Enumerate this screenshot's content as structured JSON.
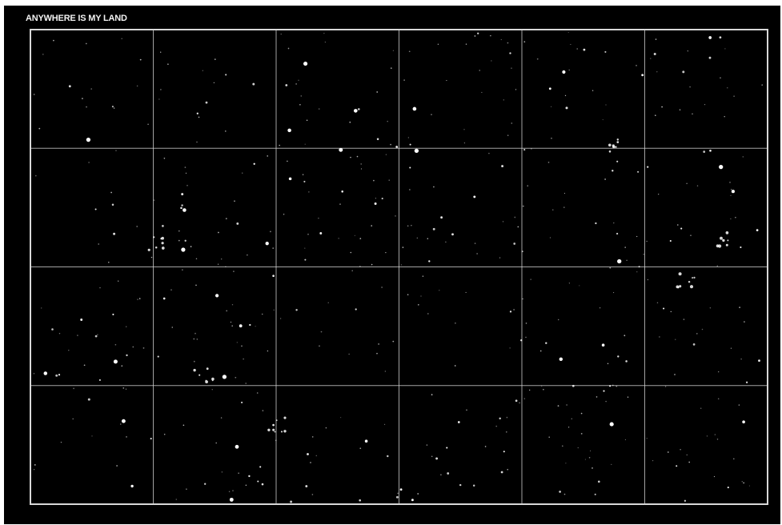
{
  "artwork": {
    "title": "ANYWHERE IS MY LAND",
    "background_color": "#000000",
    "line_color": "#d8d8d8",
    "star_color": "#ffffff",
    "grid": {
      "columns": 6,
      "rows": 4
    }
  }
}
